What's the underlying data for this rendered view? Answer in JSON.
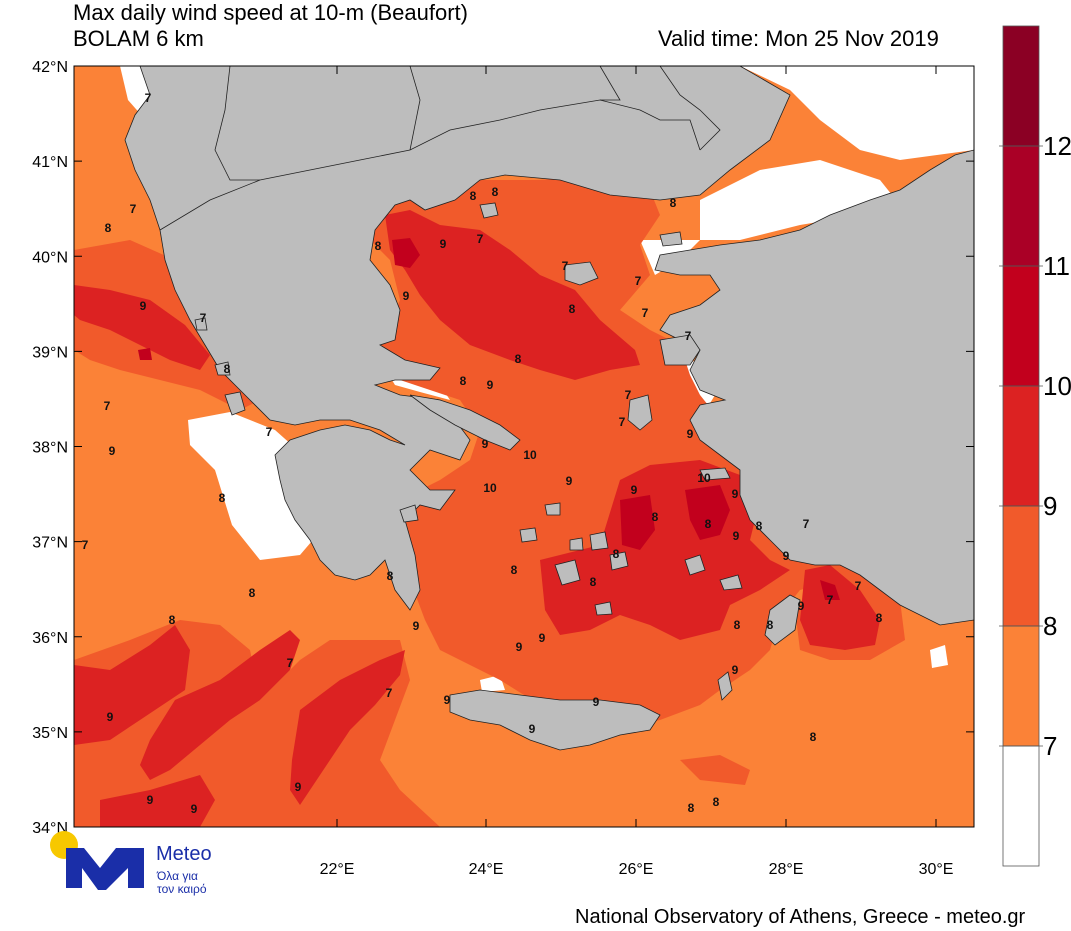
{
  "header": {
    "title_line1": "Max daily wind speed at 10-m (Beaufort)",
    "title_line2": "BOLAM 6 km",
    "valid_time": "Valid time: Mon 25 Nov 2019"
  },
  "axes": {
    "lat_labels": [
      "42°N",
      "41°N",
      "40°N",
      "39°N",
      "38°N",
      "37°N",
      "36°N",
      "35°N",
      "34°N"
    ],
    "lon_labels": [
      "22°E",
      "24°E",
      "26°E",
      "28°E",
      "30°E"
    ]
  },
  "colorbar": {
    "labels": [
      "12",
      "11",
      "10",
      "9",
      "8",
      "7"
    ],
    "colors": [
      "#8b0024",
      "#aa0026",
      "#c2001d",
      "#dc2222",
      "#f15a2b",
      "#fb8237",
      "#ffffff"
    ]
  },
  "contour_labels": {
    "values": [
      "7",
      "8",
      "7",
      "9",
      "7",
      "8",
      "7",
      "9",
      "8",
      "8",
      "7",
      "8",
      "7",
      "7",
      "9",
      "7",
      "8",
      "8",
      "9",
      "9",
      "7",
      "8",
      "8",
      "7",
      "8",
      "7",
      "7",
      "7",
      "8",
      "8",
      "8",
      "9",
      "9",
      "10",
      "10",
      "9",
      "7",
      "7",
      "9",
      "9",
      "8",
      "10",
      "8",
      "9",
      "9",
      "8",
      "7",
      "8",
      "9",
      "9",
      "8",
      "7",
      "7",
      "8",
      "8",
      "9",
      "9",
      "9",
      "9",
      "8",
      "8",
      "9",
      "9",
      "9"
    ]
  },
  "logo": {
    "name": "Meteo",
    "tagline_line1": "Όλα για",
    "tagline_line2": "τον καιρό"
  },
  "footer": {
    "credit": "National Observatory of Athens, Greece - meteo.gr"
  }
}
